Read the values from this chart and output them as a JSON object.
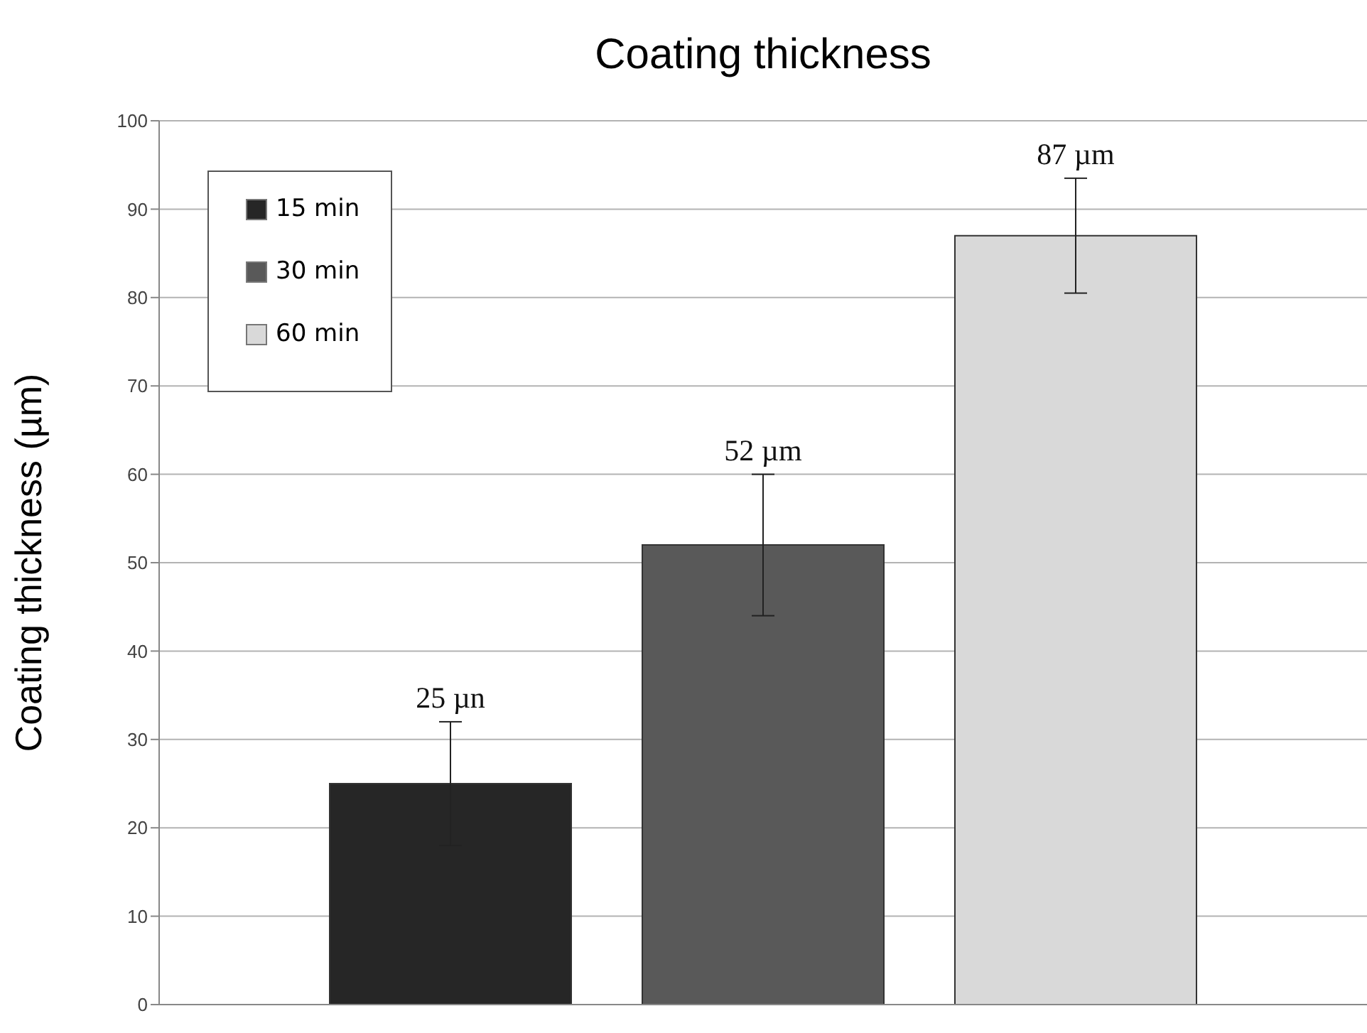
{
  "chart_data": {
    "type": "bar",
    "title": "Coating thickness",
    "ylabel": "Coating thickness (µm)",
    "categories": [
      null
    ],
    "series": [
      {
        "name": "15 min",
        "color": "#262626",
        "values": [
          25
        ],
        "errors": [
          7
        ],
        "value_labels": [
          "25 µn"
        ]
      },
      {
        "name": "30 min",
        "color": "#595959",
        "values": [
          52
        ],
        "errors": [
          8
        ],
        "value_labels": [
          "52 µm"
        ]
      },
      {
        "name": "60 min",
        "color": "#d9d9d9",
        "values": [
          87
        ],
        "errors": [
          6.5
        ],
        "value_labels": [
          "87 µm"
        ]
      }
    ],
    "ylim": [
      0,
      100
    ],
    "yticks": [
      0,
      10,
      20,
      30,
      40,
      50,
      60,
      70,
      80,
      90,
      100
    ],
    "grid": "y",
    "legend": "top left",
    "tick_labels": "y"
  }
}
